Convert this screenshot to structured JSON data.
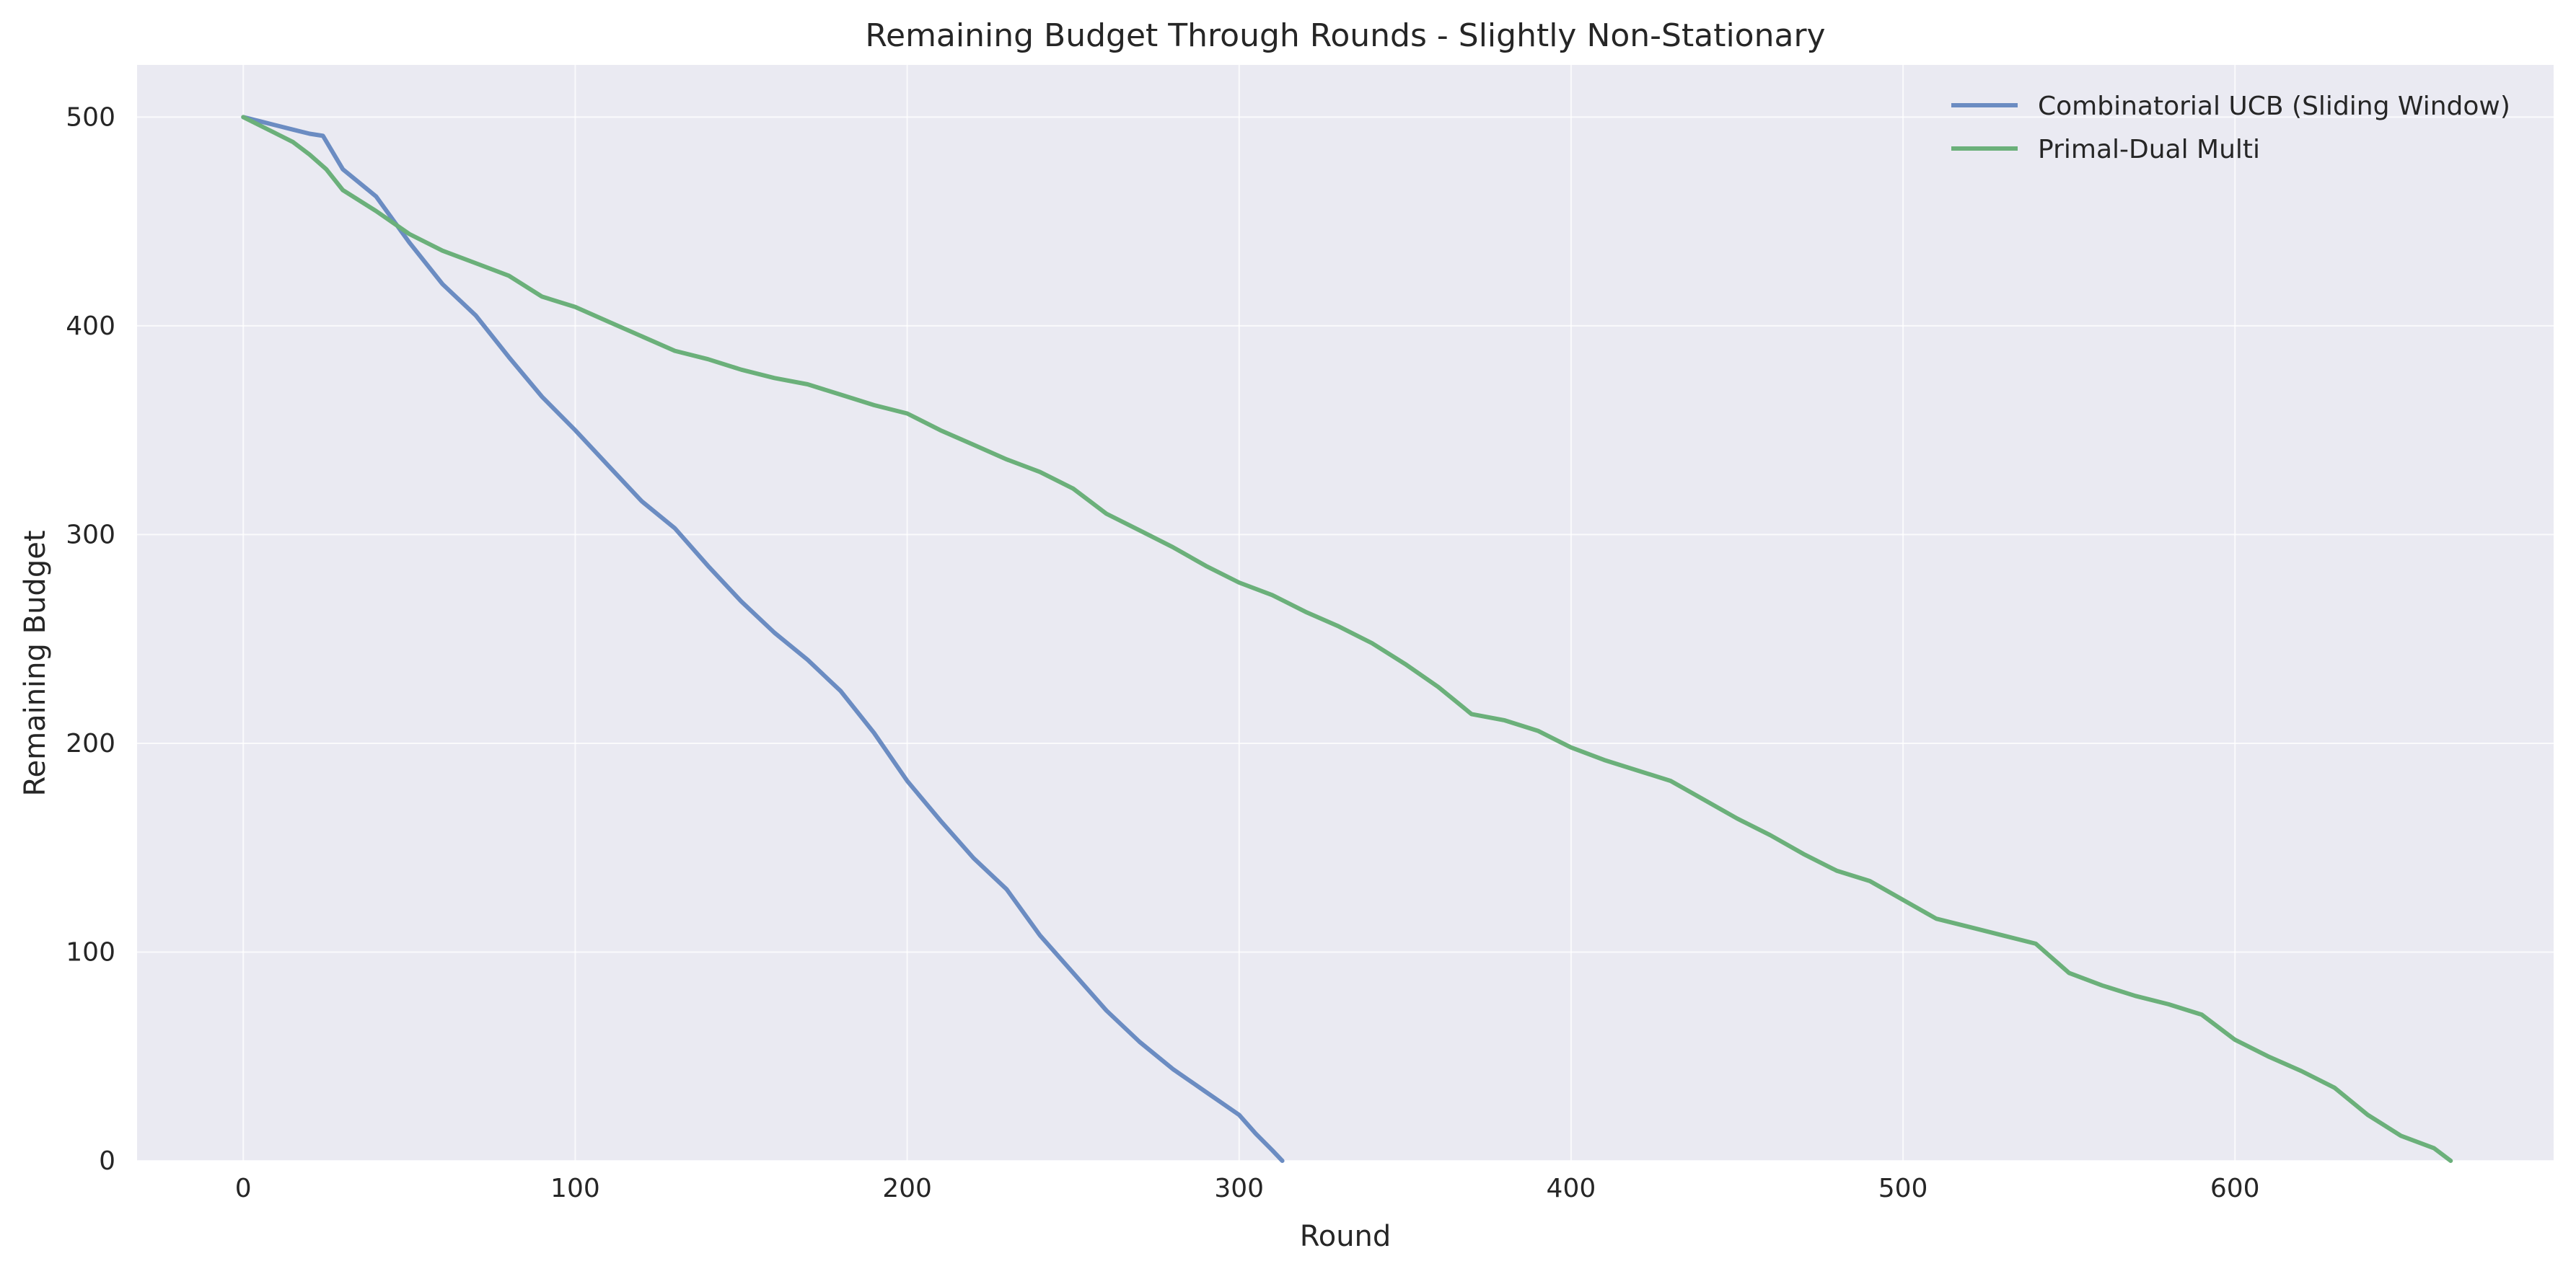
{
  "chart_data": {
    "type": "line",
    "title": "Remaining Budget Through Rounds - Slightly Non-Stationary",
    "xlabel": "Round",
    "ylabel": "Remaining Budget",
    "xlim": [
      -32,
      696
    ],
    "ylim": [
      0,
      525
    ],
    "xticks": [
      0,
      100,
      200,
      300,
      400,
      500,
      600
    ],
    "yticks": [
      0,
      100,
      200,
      300,
      400,
      500
    ],
    "grid": true,
    "legend_position": "top-right",
    "background_color": "#eaeaf2",
    "series": [
      {
        "name": "Combinatorial UCB (Sliding Window)",
        "color": "#6b8cc2",
        "points": [
          [
            0,
            500
          ],
          [
            5,
            498
          ],
          [
            10,
            496
          ],
          [
            15,
            494
          ],
          [
            20,
            492
          ],
          [
            24,
            491
          ],
          [
            30,
            475
          ],
          [
            40,
            462
          ],
          [
            50,
            440
          ],
          [
            60,
            420
          ],
          [
            70,
            405
          ],
          [
            80,
            385
          ],
          [
            90,
            366
          ],
          [
            100,
            350
          ],
          [
            110,
            333
          ],
          [
            120,
            316
          ],
          [
            130,
            303
          ],
          [
            140,
            285
          ],
          [
            150,
            268
          ],
          [
            160,
            253
          ],
          [
            170,
            240
          ],
          [
            180,
            225
          ],
          [
            190,
            205
          ],
          [
            200,
            182
          ],
          [
            210,
            163
          ],
          [
            220,
            145
          ],
          [
            230,
            130
          ],
          [
            240,
            108
          ],
          [
            250,
            90
          ],
          [
            260,
            72
          ],
          [
            270,
            57
          ],
          [
            280,
            44
          ],
          [
            290,
            33
          ],
          [
            300,
            22
          ],
          [
            305,
            13
          ],
          [
            310,
            5
          ],
          [
            313,
            0
          ]
        ]
      },
      {
        "name": "Primal-Dual Multi",
        "color": "#6bb07a",
        "points": [
          [
            0,
            500
          ],
          [
            5,
            496
          ],
          [
            10,
            492
          ],
          [
            15,
            488
          ],
          [
            20,
            482
          ],
          [
            25,
            475
          ],
          [
            30,
            465
          ],
          [
            40,
            455
          ],
          [
            50,
            444
          ],
          [
            60,
            436
          ],
          [
            70,
            430
          ],
          [
            80,
            424
          ],
          [
            90,
            414
          ],
          [
            100,
            409
          ],
          [
            110,
            402
          ],
          [
            120,
            395
          ],
          [
            130,
            388
          ],
          [
            140,
            384
          ],
          [
            150,
            379
          ],
          [
            160,
            375
          ],
          [
            170,
            372
          ],
          [
            180,
            367
          ],
          [
            190,
            362
          ],
          [
            200,
            358
          ],
          [
            210,
            350
          ],
          [
            220,
            343
          ],
          [
            230,
            336
          ],
          [
            240,
            330
          ],
          [
            250,
            322
          ],
          [
            260,
            310
          ],
          [
            270,
            302
          ],
          [
            280,
            294
          ],
          [
            290,
            285
          ],
          [
            300,
            277
          ],
          [
            310,
            271
          ],
          [
            320,
            263
          ],
          [
            330,
            256
          ],
          [
            340,
            248
          ],
          [
            350,
            238
          ],
          [
            360,
            227
          ],
          [
            370,
            214
          ],
          [
            380,
            211
          ],
          [
            390,
            206
          ],
          [
            400,
            198
          ],
          [
            410,
            192
          ],
          [
            420,
            187
          ],
          [
            430,
            182
          ],
          [
            440,
            173
          ],
          [
            450,
            164
          ],
          [
            460,
            156
          ],
          [
            470,
            147
          ],
          [
            480,
            139
          ],
          [
            490,
            134
          ],
          [
            500,
            125
          ],
          [
            510,
            116
          ],
          [
            520,
            112
          ],
          [
            530,
            108
          ],
          [
            540,
            104
          ],
          [
            550,
            90
          ],
          [
            560,
            84
          ],
          [
            570,
            79
          ],
          [
            580,
            75
          ],
          [
            590,
            70
          ],
          [
            600,
            58
          ],
          [
            610,
            50
          ],
          [
            620,
            43
          ],
          [
            630,
            35
          ],
          [
            640,
            22
          ],
          [
            650,
            12
          ],
          [
            660,
            6
          ],
          [
            665,
            0
          ]
        ]
      }
    ]
  }
}
